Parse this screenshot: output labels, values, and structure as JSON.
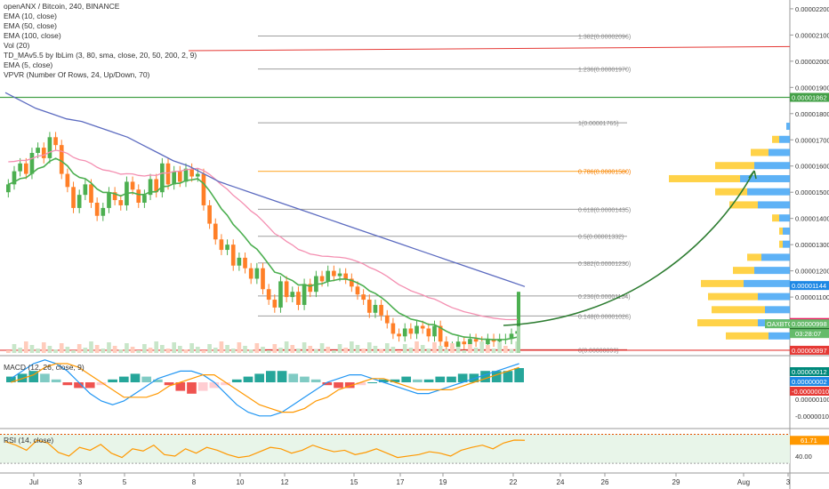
{
  "legend": {
    "title": "openANX / Bitcoin, 240, BINANCE",
    "indicators": [
      "EMA (10, close)",
      "EMA (50, close)",
      "EMA (100, close)",
      "Vol (20)",
      "TD_MAv5.5 by lbLim (3, 80, sma, close, 20, 50, 200, 2, 9)",
      "EMA (5, close)",
      "VPVR (Number Of Rows, 24, Up/Down, 70)"
    ]
  },
  "macd_label": "MACD (12, 26, close, 9)",
  "rsi_label": "RSI (14, close)",
  "colors": {
    "up": "#26a69a",
    "down": "#ef5350",
    "candle_up": "#4caf50",
    "candle_down": "#ff7f27",
    "ema10": "#4caf50",
    "ema50": "#f48fb1",
    "ema100": "#5c6bc0",
    "fib_gray": "#9e9e9e",
    "fib_orange": "#ffb74d",
    "green_line": "#43a047",
    "red_line": "#e53935",
    "arrow": "#2e7d32",
    "macd_line": "#2196f3",
    "signal_line": "#ff9800",
    "rsi_line": "#ff9800",
    "rsi_band": "#e8f5e9"
  },
  "chart_data": {
    "type": "candlestick",
    "symbol": "openANX / Bitcoin",
    "timeframe": "240",
    "exchange": "BINANCE",
    "x_ticks": [
      "Jul",
      "3",
      "5",
      "8",
      "10",
      "12",
      "15",
      "17",
      "19",
      "22",
      "24",
      "26",
      "29",
      "Aug",
      "3"
    ],
    "y_ticks": [
      "0.00002200",
      "0.00002100",
      "0.00002000",
      "0.00001900",
      "0.00001800",
      "0.00001700",
      "0.00001600",
      "0.00001500",
      "0.00001400",
      "0.00001300",
      "0.00001200",
      "0.00001100"
    ],
    "ylim": [
      8.9e-06,
      2.22e-05
    ],
    "close_series": [
      1.53e-05,
      1.58e-05,
      1.61e-05,
      1.57e-05,
      1.65e-05,
      1.67e-05,
      1.63e-05,
      1.71e-05,
      1.68e-05,
      1.57e-05,
      1.52e-05,
      1.44e-05,
      1.49e-05,
      1.53e-05,
      1.46e-05,
      1.41e-05,
      1.44e-05,
      1.5e-05,
      1.47e-05,
      1.45e-05,
      1.54e-05,
      1.51e-05,
      1.46e-05,
      1.49e-05,
      1.55e-05,
      1.5e-05,
      1.61e-05,
      1.53e-05,
      1.58e-05,
      1.54e-05,
      1.59e-05,
      1.56e-05,
      1.57e-05,
      1.45e-05,
      1.38e-05,
      1.32e-05,
      1.28e-05,
      1.3e-05,
      1.22e-05,
      1.25e-05,
      1.21e-05,
      1.17e-05,
      1.21e-05,
      1.13e-05,
      1.09e-05,
      1.06e-05,
      1.16e-05,
      1.1e-05,
      1.12e-05,
      1.07e-05,
      1.15e-05,
      1.12e-05,
      1.18e-05,
      1.16e-05,
      1.2e-05,
      1.18e-05,
      1.19e-05,
      1.17e-05,
      1.14e-05,
      1.11e-05,
      1.09e-05,
      1.04e-05,
      1.07e-05,
      1.03e-05,
      1e-05,
      9.6e-06,
      9.5e-06,
      9.8e-06,
      9.6e-06,
      9.9e-06,
      9.8e-06,
      9.5e-06,
      9.9e-06,
      9.3e-06,
      9.1e-06,
      9.1e-06,
      9.3e-06,
      9.2e-06,
      9.4e-06,
      9.3e-06,
      9.2e-06,
      9.4e-06,
      9.3e-06,
      9.4e-06,
      9.4e-06,
      9.6e-06,
      9.7e-06
    ],
    "last_candle": {
      "open": 9.7e-06,
      "high": 1.12e-05,
      "low": 9.6e-06,
      "close": 9.98e-06
    },
    "ema100": [
      1.88e-05,
      1.85e-05,
      1.82e-05,
      1.8e-05,
      1.78e-05,
      1.77e-05,
      1.75e-05,
      1.73e-05,
      1.71e-05,
      1.68e-05,
      1.65e-05,
      1.62e-05,
      1.6e-05,
      1.57e-05,
      1.54e-05,
      1.52e-05,
      1.5e-05,
      1.48e-05,
      1.46e-05,
      1.44e-05,
      1.42e-05,
      1.4e-05,
      1.38e-05,
      1.36e-05,
      1.34e-05,
      1.32e-05,
      1.3e-05,
      1.28e-05,
      1.26e-05,
      1.24e-05,
      1.22e-05,
      1.2e-05,
      1.18e-05,
      1.16e-05,
      1.14e-05
    ],
    "fib_levels": [
      {
        "label": "1.382(0.00002096)",
        "value": 2.096e-05
      },
      {
        "label": "1.236(0.00001970)",
        "value": 1.97e-05
      },
      {
        "label": "1(0.00001765)",
        "value": 1.765e-05
      },
      {
        "label": "0.786(0.00001580)",
        "value": 1.58e-05
      },
      {
        "label": "0.618(0.00001435)",
        "value": 1.435e-05
      },
      {
        "label": "0.5(0.00001332)",
        "value": 1.332e-05
      },
      {
        "label": "0.382(0.00001230)",
        "value": 1.23e-05
      },
      {
        "label": "0.236(0.00001104)",
        "value": 1.104e-05
      },
      {
        "label": "0.148(0.00001028)",
        "value": 1.028e-05
      },
      {
        "label": "0(0.00000899)",
        "value": 8.99e-06
      }
    ],
    "price_labels": [
      {
        "text": "0.00001862",
        "value": 1.862e-05,
        "color": "#43a047"
      },
      {
        "text": "0.00001144",
        "value": 1.144e-05,
        "color": "#1e88e5"
      },
      {
        "text": "0.00001003",
        "value": 1.003e-05,
        "color": "#e91e63"
      },
      {
        "text": "0.00000981",
        "value": 9.81e-06,
        "color": "#e53935"
      },
      {
        "text": "0.00000967",
        "value": 9.67e-06,
        "color": "#1b5e20"
      },
      {
        "text": "0.00000897",
        "value": 8.97e-06,
        "color": "#e53935"
      }
    ],
    "price_tag": {
      "text": "OAXBTC",
      "value": "0.00000998",
      "time": "03:28:07"
    },
    "vpvr_bins": [
      {
        "price": 1.75e-05,
        "up": 1,
        "down": 0
      },
      {
        "price": 1.7e-05,
        "up": 3,
        "down": 2
      },
      {
        "price": 1.65e-05,
        "up": 6,
        "down": 5
      },
      {
        "price": 1.6e-05,
        "up": 10,
        "down": 11
      },
      {
        "price": 1.55e-05,
        "up": 14,
        "down": 20
      },
      {
        "price": 1.5e-05,
        "up": 12,
        "down": 9
      },
      {
        "price": 1.45e-05,
        "up": 9,
        "down": 8
      },
      {
        "price": 1.4e-05,
        "up": 3,
        "down": 2
      },
      {
        "price": 1.35e-05,
        "up": 2,
        "down": 1
      },
      {
        "price": 1.3e-05,
        "up": 2,
        "down": 1
      },
      {
        "price": 1.25e-05,
        "up": 8,
        "down": 4
      },
      {
        "price": 1.2e-05,
        "up": 10,
        "down": 6
      },
      {
        "price": 1.15e-05,
        "up": 13,
        "down": 12
      },
      {
        "price": 1.1e-05,
        "up": 9,
        "down": 14
      },
      {
        "price": 1.05e-05,
        "up": 7,
        "down": 15
      },
      {
        "price": 1e-05,
        "up": 9,
        "down": 17
      },
      {
        "price": 9.5e-06,
        "up": 6,
        "down": 12
      }
    ],
    "macd": {
      "ticks": [
        "0.00000100",
        "-0.00000100"
      ],
      "labels": [
        {
          "text": "0.00000012",
          "color": "#00897b"
        },
        {
          "text": "0.00000002",
          "color": "#1e88e5"
        },
        {
          "text": "-0.00000010",
          "color": "#e53935"
        }
      ],
      "hist": [
        2,
        3,
        4,
        3,
        1,
        -1,
        -2,
        -2,
        -1,
        1,
        2,
        3,
        2,
        1,
        -1,
        -3,
        -4,
        -3,
        -2,
        -1,
        1,
        2,
        3,
        4,
        4,
        3,
        2,
        1,
        -1,
        -2,
        -2,
        -1,
        0,
        1,
        1,
        2,
        1,
        1,
        2,
        2,
        3,
        3,
        4,
        4,
        4,
        5
      ],
      "macd_line": [
        1,
        3,
        5,
        6,
        5,
        3,
        0,
        -3,
        -5,
        -6,
        -5,
        -3,
        -1,
        1,
        2,
        3,
        3,
        2,
        0,
        -3,
        -6,
        -8,
        -9,
        -9,
        -8,
        -6,
        -4,
        -2,
        0,
        1,
        2,
        2,
        1,
        0,
        -1,
        -2,
        -3,
        -3,
        -2,
        -1,
        0,
        1,
        2,
        3,
        4,
        5
      ],
      "signal_line": [
        0,
        1,
        2,
        4,
        5,
        5,
        4,
        2,
        0,
        -2,
        -4,
        -4,
        -4,
        -3,
        -1,
        0,
        1,
        2,
        2,
        0,
        -2,
        -4,
        -6,
        -7,
        -8,
        -8,
        -7,
        -5,
        -4,
        -2,
        -1,
        0,
        1,
        1,
        0,
        -1,
        -2,
        -2,
        -2,
        -2,
        -1,
        0,
        1,
        2,
        3,
        4
      ]
    },
    "rsi": {
      "ticks": [
        "40.00"
      ],
      "value_label": "61.71",
      "values": [
        60,
        55,
        48,
        62,
        58,
        45,
        40,
        52,
        48,
        56,
        44,
        38,
        50,
        47,
        55,
        42,
        40,
        50,
        44,
        52,
        48,
        42,
        38,
        40,
        46,
        52,
        50,
        44,
        48,
        55,
        50,
        46,
        48,
        42,
        45,
        50,
        44,
        38,
        40,
        42,
        46,
        44,
        40,
        48,
        52,
        55,
        50,
        58,
        62,
        61.71
      ]
    }
  }
}
